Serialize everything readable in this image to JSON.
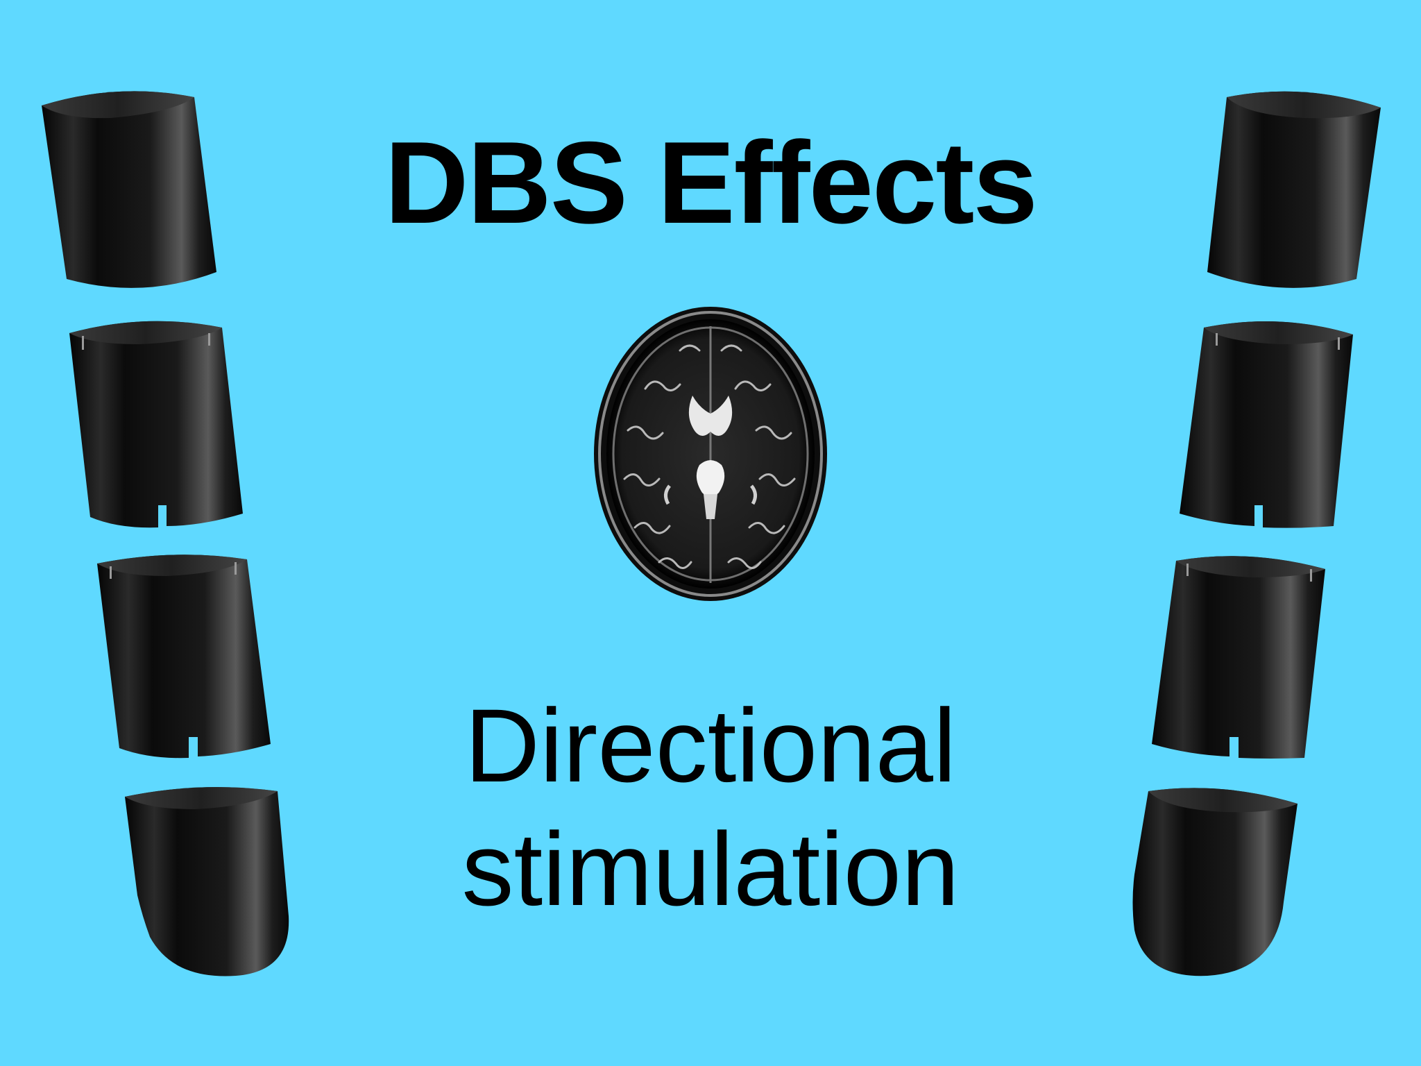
{
  "slide": {
    "background_color": "#5fd9ff",
    "title": "DBS Effects",
    "subtitle_line1": "Directional",
    "subtitle_line2": "stimulation"
  },
  "images": {
    "center": "brain-mri-axial",
    "left_stack": [
      "ring-contact",
      "segmented-contact",
      "segmented-contact",
      "tip-contact"
    ],
    "right_stack": [
      "ring-contact",
      "segmented-contact",
      "segmented-contact",
      "tip-contact"
    ]
  }
}
